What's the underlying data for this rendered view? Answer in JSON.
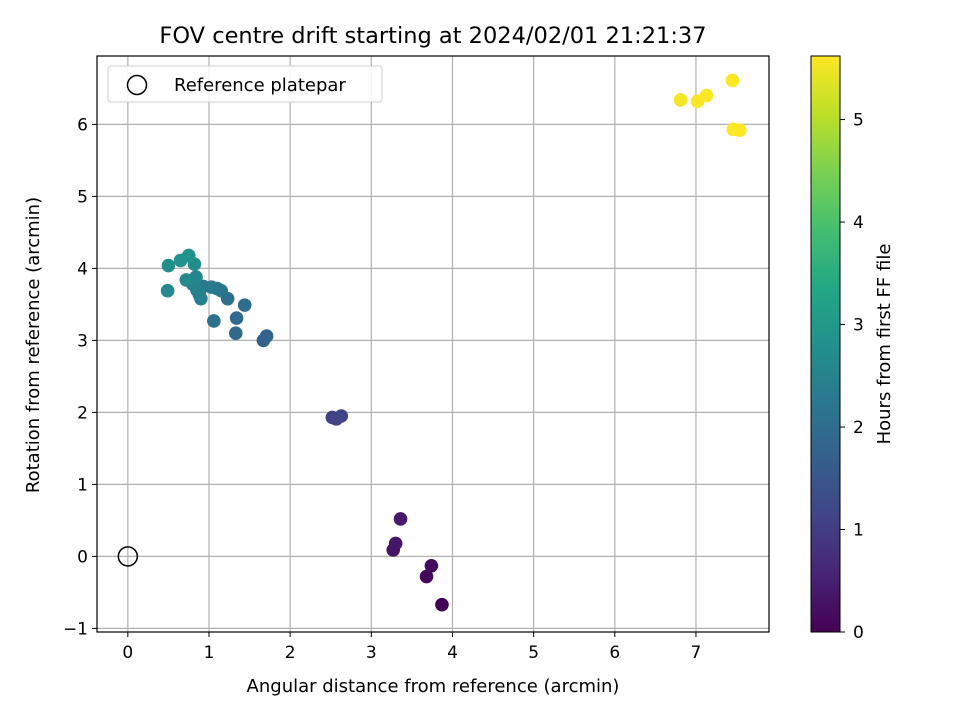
{
  "chart_data": {
    "type": "scatter",
    "title": "FOV centre drift starting at 2024/02/01 21:21:37",
    "xlabel": "Angular distance from reference (arcmin)",
    "ylabel": "Rotation from reference (arcmin)",
    "xlim": [
      -0.38,
      7.9
    ],
    "ylim": [
      -1.05,
      6.95
    ],
    "xticks": [
      0,
      1,
      2,
      3,
      4,
      5,
      6,
      7
    ],
    "yticks": [
      -1,
      0,
      1,
      2,
      3,
      4,
      5,
      6
    ],
    "grid": true,
    "legend": {
      "placement": "top-left",
      "label": "Reference platepar"
    },
    "reference_point": {
      "x": 0,
      "y": 0
    },
    "colorbar": {
      "label": "Hours from first FF file",
      "min": 0,
      "max": 5.62,
      "ticks": [
        0,
        1,
        2,
        3,
        4,
        5
      ],
      "colormap": "viridis"
    },
    "points": [
      {
        "x": 3.87,
        "y": -0.67,
        "c": 0.0
      },
      {
        "x": 3.68,
        "y": -0.28,
        "c": 0.1
      },
      {
        "x": 3.74,
        "y": -0.13,
        "c": 0.15
      },
      {
        "x": 3.27,
        "y": 0.09,
        "c": 0.3
      },
      {
        "x": 3.3,
        "y": 0.18,
        "c": 0.35
      },
      {
        "x": 3.36,
        "y": 0.52,
        "c": 0.4
      },
      {
        "x": 2.52,
        "y": 1.93,
        "c": 1.05
      },
      {
        "x": 2.57,
        "y": 1.91,
        "c": 1.1
      },
      {
        "x": 2.63,
        "y": 1.95,
        "c": 1.15
      },
      {
        "x": 1.67,
        "y": 3.0,
        "c": 1.75
      },
      {
        "x": 1.71,
        "y": 3.06,
        "c": 1.8
      },
      {
        "x": 1.33,
        "y": 3.1,
        "c": 1.9
      },
      {
        "x": 1.34,
        "y": 3.31,
        "c": 1.95
      },
      {
        "x": 1.44,
        "y": 3.49,
        "c": 2.0
      },
      {
        "x": 1.23,
        "y": 3.58,
        "c": 2.05
      },
      {
        "x": 1.06,
        "y": 3.27,
        "c": 2.1
      },
      {
        "x": 1.15,
        "y": 3.69,
        "c": 2.15
      },
      {
        "x": 1.1,
        "y": 3.72,
        "c": 2.2
      },
      {
        "x": 1.03,
        "y": 3.74,
        "c": 2.25
      },
      {
        "x": 0.93,
        "y": 3.75,
        "c": 2.3
      },
      {
        "x": 0.9,
        "y": 3.58,
        "c": 2.35
      },
      {
        "x": 0.88,
        "y": 3.64,
        "c": 2.4
      },
      {
        "x": 0.85,
        "y": 3.7,
        "c": 2.45
      },
      {
        "x": 0.8,
        "y": 3.78,
        "c": 2.5
      },
      {
        "x": 0.84,
        "y": 3.88,
        "c": 2.55
      },
      {
        "x": 0.72,
        "y": 3.84,
        "c": 2.6
      },
      {
        "x": 0.49,
        "y": 3.69,
        "c": 2.65
      },
      {
        "x": 0.82,
        "y": 4.06,
        "c": 2.7
      },
      {
        "x": 0.5,
        "y": 4.04,
        "c": 2.75
      },
      {
        "x": 0.65,
        "y": 4.11,
        "c": 2.8
      },
      {
        "x": 0.75,
        "y": 4.18,
        "c": 2.85
      },
      {
        "x": 6.81,
        "y": 6.34,
        "c": 5.55
      },
      {
        "x": 7.02,
        "y": 6.32,
        "c": 5.57
      },
      {
        "x": 7.13,
        "y": 6.4,
        "c": 5.59
      },
      {
        "x": 7.45,
        "y": 6.61,
        "c": 5.6
      },
      {
        "x": 7.46,
        "y": 5.93,
        "c": 5.61
      },
      {
        "x": 7.54,
        "y": 5.92,
        "c": 5.62
      }
    ]
  }
}
